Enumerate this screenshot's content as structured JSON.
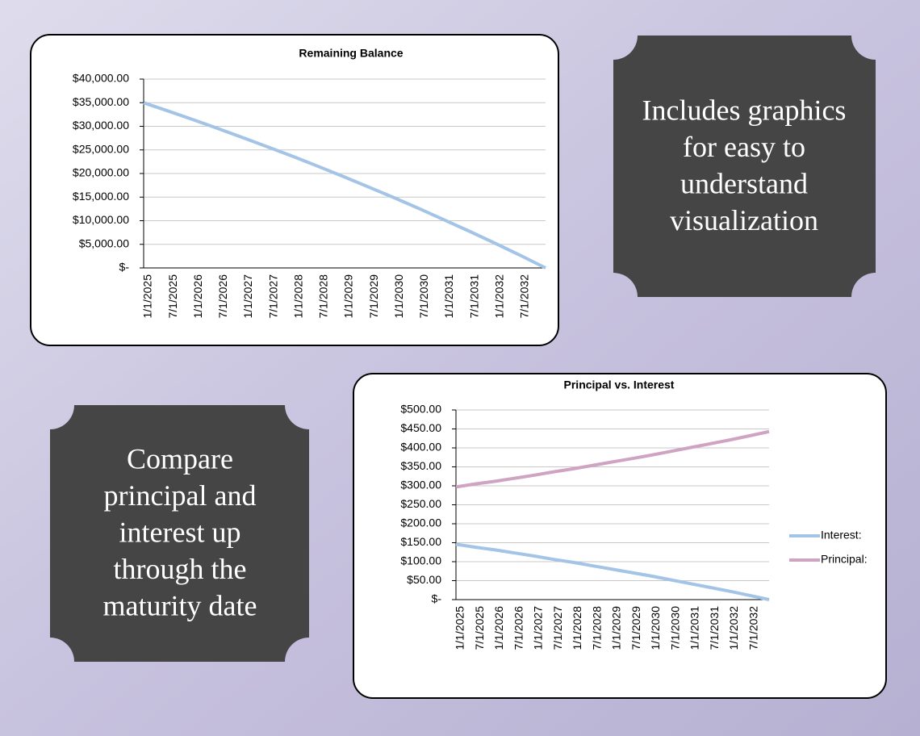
{
  "chart_data": [
    {
      "type": "line",
      "title": "Remaining Balance",
      "categories": [
        "1/1/2025",
        "7/1/2025",
        "1/1/2026",
        "7/1/2026",
        "1/1/2027",
        "7/1/2027",
        "1/1/2028",
        "7/1/2028",
        "1/1/2029",
        "7/1/2029",
        "1/1/2030",
        "7/1/2030",
        "1/1/2031",
        "7/1/2031",
        "1/1/2032",
        "7/1/2032",
        null
      ],
      "values": [
        35000,
        33200,
        31350,
        29450,
        27500,
        25500,
        23500,
        21400,
        19250,
        17050,
        14800,
        12500,
        10100,
        7700,
        5200,
        2650,
        0
      ],
      "color": "#a3c4e6",
      "ylim": [
        0,
        40000
      ],
      "yticks": [
        {
          "value": 0,
          "label": "$-"
        },
        {
          "value": 5000,
          "label": "$5,000.00"
        },
        {
          "value": 10000,
          "label": "$10,000.00"
        },
        {
          "value": 15000,
          "label": "$15,000.00"
        },
        {
          "value": 20000,
          "label": "$20,000.00"
        },
        {
          "value": 25000,
          "label": "$25,000.00"
        },
        {
          "value": 30000,
          "label": "$30,000.00"
        },
        {
          "value": 35000,
          "label": "$35,000.00"
        },
        {
          "value": 40000,
          "label": "$40,000.00"
        }
      ],
      "grid": true
    },
    {
      "type": "line",
      "title": "Principal vs. Interest",
      "categories": [
        "1/1/2025",
        "7/1/2025",
        "1/1/2026",
        "7/1/2026",
        "1/1/2027",
        "7/1/2027",
        "1/1/2028",
        "7/1/2028",
        "1/1/2029",
        "7/1/2029",
        "1/1/2030",
        "7/1/2030",
        "1/1/2031",
        "7/1/2031",
        "1/1/2032",
        "7/1/2032",
        null
      ],
      "series": [
        {
          "name": "Interest:",
          "color": "#a3c4e6",
          "values": [
            146,
            138,
            131,
            123,
            115,
            106,
            98,
            89,
            80,
            71,
            62,
            52,
            42,
            32,
            22,
            11,
            0
          ]
        },
        {
          "name": "Principal:",
          "color": "#cfa3c2",
          "values": [
            297,
            305,
            312,
            320,
            328,
            337,
            345,
            354,
            363,
            372,
            381,
            391,
            401,
            411,
            421,
            432,
            443
          ]
        }
      ],
      "ylim": [
        0,
        500
      ],
      "yticks": [
        {
          "value": 0,
          "label": "$-"
        },
        {
          "value": 50,
          "label": "$50.00"
        },
        {
          "value": 100,
          "label": "$100.00"
        },
        {
          "value": 150,
          "label": "$150.00"
        },
        {
          "value": 200,
          "label": "$200.00"
        },
        {
          "value": 250,
          "label": "$250.00"
        },
        {
          "value": 300,
          "label": "$300.00"
        },
        {
          "value": 350,
          "label": "$350.00"
        },
        {
          "value": 400,
          "label": "$400.00"
        },
        {
          "value": 450,
          "label": "$450.00"
        },
        {
          "value": 500,
          "label": "$500.00"
        }
      ],
      "grid": true,
      "legend": "right"
    }
  ],
  "captions": [
    {
      "lines": [
        "Includes graphics",
        "for easy to",
        "understand",
        "visualization"
      ]
    },
    {
      "lines": [
        "Compare",
        "principal and",
        "interest up",
        "through the",
        "maturity date"
      ]
    }
  ]
}
